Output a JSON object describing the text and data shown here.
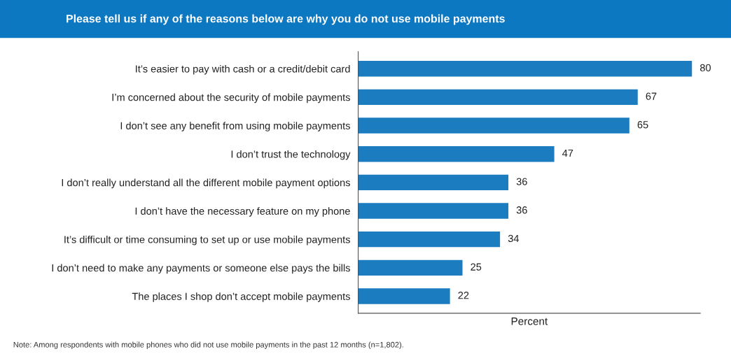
{
  "chart_data": {
    "type": "bar",
    "orientation": "horizontal",
    "title": "Please tell us if any of the reasons below are why you do not use mobile payments",
    "categories": [
      "It’s easier to pay with cash or a credit/debit card",
      "I’m concerned about the security of mobile payments",
      "I don’t see any benefit from using mobile payments",
      "I don’t trust the technology",
      "I don’t really understand all the different mobile payment options",
      "I don’t have the necessary feature on my phone",
      "It’s difficult or time consuming to set up or use mobile payments",
      "I don’t need to make any payments or someone else pays the bills",
      "The places I shop don’t accept mobile payments"
    ],
    "values": [
      80,
      67,
      65,
      47,
      36,
      36,
      34,
      25,
      22
    ],
    "color": "#1b7cc0",
    "xlim": [
      0,
      82
    ],
    "xlabel": "Percent",
    "data_labels": true,
    "tick_labels": "y",
    "grid": false,
    "legend": false,
    "annotations": [
      "Note: Among respondents with mobile phones who did not use mobile payments in the past 12 months (n=1,802)."
    ]
  }
}
